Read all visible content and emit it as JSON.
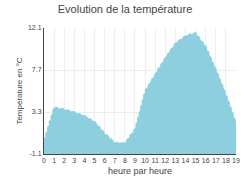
{
  "chart_data": {
    "type": "area",
    "title": "Evolution de la température",
    "xlabel": "heure par heure",
    "ylabel": "Température en °C",
    "x": [
      0,
      1,
      2,
      3,
      4,
      5,
      6,
      7,
      8,
      9,
      10,
      11,
      12,
      13,
      14,
      15,
      16,
      17,
      18,
      19
    ],
    "values": [
      0.3,
      3.8,
      3.6,
      3.3,
      2.9,
      2.3,
      1.1,
      0.1,
      0.05,
      1.5,
      5.5,
      7.2,
      9.0,
      10.5,
      11.3,
      11.6,
      10.2,
      7.8,
      5.2,
      2.2
    ],
    "color": "#8ecfdf",
    "line_style": "dotted",
    "xlim": [
      0,
      19
    ],
    "xticks": [
      0,
      1,
      2,
      3,
      4,
      5,
      6,
      7,
      8,
      9,
      10,
      11,
      12,
      13,
      14,
      15,
      16,
      17,
      18,
      19
    ],
    "ylim": [
      -1.1,
      12.1
    ],
    "yticks": [
      -1.1,
      3.3,
      7.7,
      12.1
    ],
    "grid": true
  }
}
